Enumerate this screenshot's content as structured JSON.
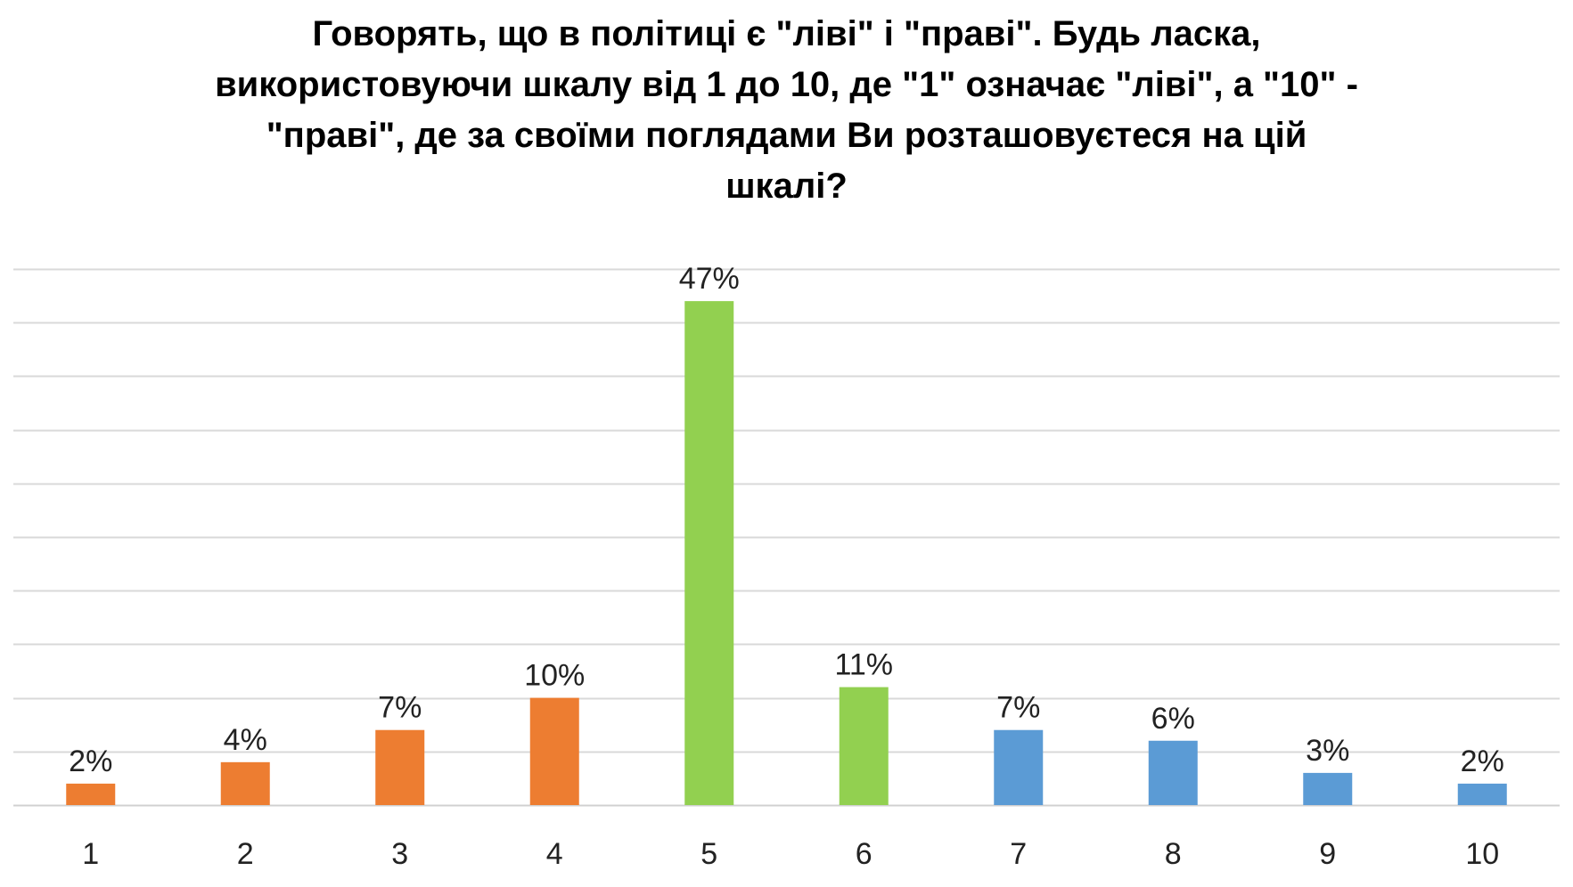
{
  "chart_data": {
    "type": "bar",
    "title": "Говорять, що в політиці є \"ліві\" і \"праві\". Будь ласка,\nвикористовуючи шкалу від 1 до 10, де \"1\" означає \"ліві\", а \"10\" -\n\"праві\",  де за своїми поглядами Ви розташовуєтеся на цій\nшкалі?",
    "categories": [
      "1",
      "2",
      "3",
      "4",
      "5",
      "6",
      "7",
      "8",
      "9",
      "10"
    ],
    "values": [
      2,
      4,
      7,
      10,
      47,
      11,
      7,
      6,
      3,
      2
    ],
    "data_labels": [
      "2%",
      "4%",
      "7%",
      "10%",
      "47%",
      "11%",
      "7%",
      "6%",
      "3%",
      "2%"
    ],
    "bar_colors": [
      "#ED7D31",
      "#ED7D31",
      "#ED7D31",
      "#ED7D31",
      "#92D050",
      "#92D050",
      "#5B9BD5",
      "#5B9BD5",
      "#5B9BD5",
      "#5B9BD5"
    ],
    "ylim": [
      0,
      50
    ],
    "grid": true,
    "legend": "none",
    "xlabel": "",
    "ylabel": ""
  }
}
